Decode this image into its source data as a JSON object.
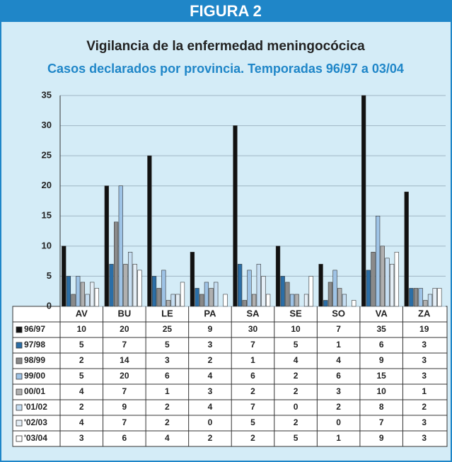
{
  "header": "FIGURA 2",
  "chart_data": {
    "type": "bar",
    "title": "Vigilancia de la enfermedad meningocócica",
    "subtitle": "Casos declarados por provincia. Temporadas 96/97 a 03/04",
    "categories": [
      "AV",
      "BU",
      "LE",
      "PA",
      "SA",
      "SE",
      "SO",
      "VA",
      "ZA"
    ],
    "series": [
      {
        "name": "96/97",
        "color": "#111111",
        "values": [
          10,
          20,
          25,
          9,
          30,
          10,
          7,
          35,
          19
        ]
      },
      {
        "name": "97/98",
        "color": "#2b6ea6",
        "values": [
          5,
          7,
          5,
          3,
          7,
          5,
          1,
          6,
          3
        ]
      },
      {
        "name": "98/99",
        "color": "#8a8a8a",
        "values": [
          2,
          14,
          3,
          2,
          1,
          4,
          4,
          9,
          3
        ]
      },
      {
        "name": "99/00",
        "color": "#9ec3e6",
        "values": [
          5,
          20,
          6,
          4,
          6,
          2,
          6,
          15,
          3
        ]
      },
      {
        "name": "00/01",
        "color": "#b0b0b0",
        "values": [
          4,
          7,
          1,
          3,
          2,
          2,
          3,
          10,
          1
        ]
      },
      {
        "name": "'01/02",
        "color": "#c6def2",
        "values": [
          2,
          9,
          2,
          4,
          7,
          0,
          2,
          8,
          2
        ]
      },
      {
        "name": "'02/03",
        "color": "#e4eef6",
        "values": [
          4,
          7,
          2,
          0,
          5,
          2,
          0,
          7,
          3
        ]
      },
      {
        "name": "'03/04",
        "color": "#ffffff",
        "values": [
          3,
          6,
          4,
          2,
          2,
          5,
          1,
          9,
          3
        ]
      }
    ],
    "ylim": [
      0,
      35
    ],
    "yticks": [
      0,
      5,
      10,
      15,
      20,
      25,
      30,
      35
    ],
    "grid": true
  }
}
